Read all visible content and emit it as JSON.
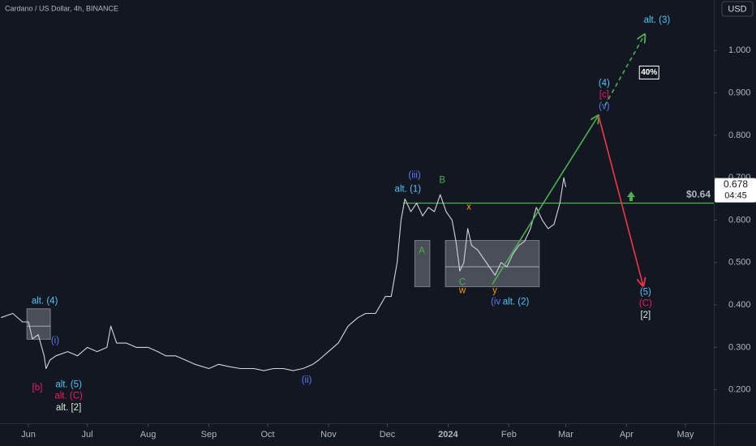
{
  "chart_data": {
    "type": "line",
    "title": "Cardano / US Dollar, 4h, BINANCE",
    "currency": "USD",
    "countdown": "04:45",
    "xlim": [
      -14.5,
      349.5
    ],
    "xticks": [
      {
        "value": 0,
        "label": "Jun"
      },
      {
        "value": 30,
        "label": "Jul"
      },
      {
        "value": 61,
        "label": "Aug"
      },
      {
        "value": 92,
        "label": "Sep"
      },
      {
        "value": 122,
        "label": "Oct"
      },
      {
        "value": 153,
        "label": "Nov"
      },
      {
        "value": 183,
        "label": "Dec"
      },
      {
        "value": 214,
        "label": "2024"
      },
      {
        "value": 245,
        "label": "Feb"
      },
      {
        "value": 274,
        "label": "Mar"
      },
      {
        "value": 305,
        "label": "Apr"
      },
      {
        "value": 335,
        "label": "May"
      }
    ],
    "ylim": [
      0.12,
      1.119
    ],
    "yticks": [
      {
        "value": 0.2,
        "label": "0.200"
      },
      {
        "value": 0.3,
        "label": "0.300"
      },
      {
        "value": 0.4,
        "label": "0.400"
      },
      {
        "value": 0.5,
        "label": "0.500"
      },
      {
        "value": 0.6,
        "label": "0.600"
      },
      {
        "value": 0.7,
        "label": "0.700"
      },
      {
        "value": 0.8,
        "label": "0.800"
      },
      {
        "value": 0.9,
        "label": "0.900"
      },
      {
        "value": 1.0,
        "label": "1.000"
      }
    ],
    "series": [
      {
        "color": "#d1d4dc",
        "x": [
          -14,
          -8,
          -3,
          0,
          2,
          5,
          8,
          9,
          11,
          14,
          20,
          25,
          30,
          35,
          40,
          42,
          45,
          50,
          55,
          61,
          66,
          70,
          75,
          80,
          85,
          92,
          97,
          102,
          108,
          115,
          120,
          125,
          130,
          135,
          140,
          145,
          148,
          153,
          158,
          163,
          168,
          172,
          177,
          182,
          185,
          188,
          190,
          192,
          195,
          198,
          201,
          204,
          207,
          210,
          213,
          216,
          218,
          220,
          222,
          224,
          226,
          229,
          232,
          235,
          238,
          241,
          244,
          247,
          250,
          253,
          256,
          259,
          262,
          265,
          268,
          271,
          273,
          274
        ],
        "values": [
          0.37,
          0.38,
          0.36,
          0.36,
          0.32,
          0.33,
          0.28,
          0.25,
          0.27,
          0.28,
          0.29,
          0.28,
          0.3,
          0.29,
          0.3,
          0.35,
          0.31,
          0.31,
          0.3,
          0.3,
          0.29,
          0.28,
          0.28,
          0.27,
          0.26,
          0.25,
          0.26,
          0.255,
          0.25,
          0.25,
          0.245,
          0.25,
          0.25,
          0.245,
          0.25,
          0.26,
          0.27,
          0.29,
          0.31,
          0.35,
          0.37,
          0.38,
          0.38,
          0.42,
          0.42,
          0.5,
          0.6,
          0.65,
          0.62,
          0.64,
          0.61,
          0.63,
          0.62,
          0.66,
          0.62,
          0.6,
          0.55,
          0.48,
          0.5,
          0.58,
          0.54,
          0.53,
          0.51,
          0.49,
          0.47,
          0.5,
          0.49,
          0.52,
          0.54,
          0.55,
          0.58,
          0.63,
          0.6,
          0.58,
          0.59,
          0.64,
          0.7,
          0.678
        ]
      }
    ],
    "levels": [
      {
        "value": 0.64,
        "label": "$0.64",
        "color": "#4caf50",
        "from": 191
      }
    ],
    "boxes": [
      {
        "x": [
          -0.8,
          11.2
        ],
        "y": [
          0.319,
          0.391
        ],
        "mid": 0.35
      },
      {
        "x": [
          197,
          204.7
        ],
        "y": [
          0.443,
          0.552
        ]
      },
      {
        "x": [
          212.6,
          260.5
        ],
        "y": [
          0.443,
          0.552
        ],
        "mid": 0.49
      }
    ],
    "arrows": [
      {
        "x": [
          236.6,
          290.7
        ],
        "values": [
          0.449,
          0.847
        ],
        "color": "#4caf50",
        "dashed": false
      },
      {
        "x": [
          293.9,
          314.3
        ],
        "values": [
          0.87,
          1.038
        ],
        "color": "#4caf50",
        "dashed": true
      },
      {
        "x": [
          290.7,
          313.5
        ],
        "values": [
          0.847,
          0.445
        ],
        "color": "#f23645",
        "dashed": false
      }
    ],
    "annotations": [
      {
        "text": "alt. (4)",
        "color": "#4fc3f7",
        "x": 8.3,
        "y": 0.409
      },
      {
        "text": "(i)",
        "color": "#5b7cfa",
        "x": 13.6,
        "y": 0.315
      },
      {
        "text": "[b]",
        "color": "#e91e63",
        "x": 4.5,
        "y": 0.204
      },
      {
        "text": "alt. (5)",
        "color": "#4fc3f7",
        "x": 20.5,
        "y": 0.212
      },
      {
        "text": "alt. (C)",
        "color": "#e91e63",
        "x": 20.5,
        "y": 0.185
      },
      {
        "text": "alt. [2]",
        "color": "#d6ecd6",
        "x": 20.5,
        "y": 0.157
      },
      {
        "text": "(ii)",
        "color": "#5b7cfa",
        "x": 141.9,
        "y": 0.222
      },
      {
        "text": "(iii)",
        "color": "#5b7cfa",
        "x": 196.9,
        "y": 0.705
      },
      {
        "text": "alt. (1)",
        "color": "#4fc3f7",
        "x": 193.5,
        "y": 0.673
      },
      {
        "text": "B",
        "color": "#4caf50",
        "x": 211,
        "y": 0.694
      },
      {
        "text": "A",
        "color": "#4caf50",
        "x": 200.6,
        "y": 0.527
      },
      {
        "text": "x",
        "color": "#ff9800",
        "x": 224.6,
        "y": 0.631
      },
      {
        "text": "C",
        "color": "#4caf50",
        "x": 221.3,
        "y": 0.453
      },
      {
        "text": "w",
        "color": "#ff9800",
        "x": 221.3,
        "y": 0.434
      },
      {
        "text": "y",
        "color": "#ff9800",
        "x": 237.8,
        "y": 0.434
      },
      {
        "text": "(iv",
        "color": "#5b7cfa",
        "x": 238.3,
        "y": 0.407
      },
      {
        "text": "alt. (2)",
        "color": "#4fc3f7",
        "x": 248.6,
        "y": 0.407
      },
      {
        "text": "alt. (3)",
        "color": "#4fc3f7",
        "x": 320.5,
        "y": 1.071
      },
      {
        "text": "(4)",
        "color": "#4fc3f7",
        "x": 293.6,
        "y": 0.922
      },
      {
        "text": "[c]",
        "color": "#e91e63",
        "x": 293.6,
        "y": 0.895
      },
      {
        "text": "(v)",
        "color": "#5b7cfa",
        "x": 293.6,
        "y": 0.868
      },
      {
        "text": "(5)",
        "color": "#4fc3f7",
        "x": 314.7,
        "y": 0.43
      },
      {
        "text": "(C)",
        "color": "#e91e63",
        "x": 314.7,
        "y": 0.403
      },
      {
        "text": "[2]",
        "color": "#d6ecd6",
        "x": 314.7,
        "y": 0.375
      },
      {
        "text": "40%",
        "color": "#ffffff",
        "x": 316.5,
        "y": 0.948,
        "boxed": true
      }
    ]
  }
}
